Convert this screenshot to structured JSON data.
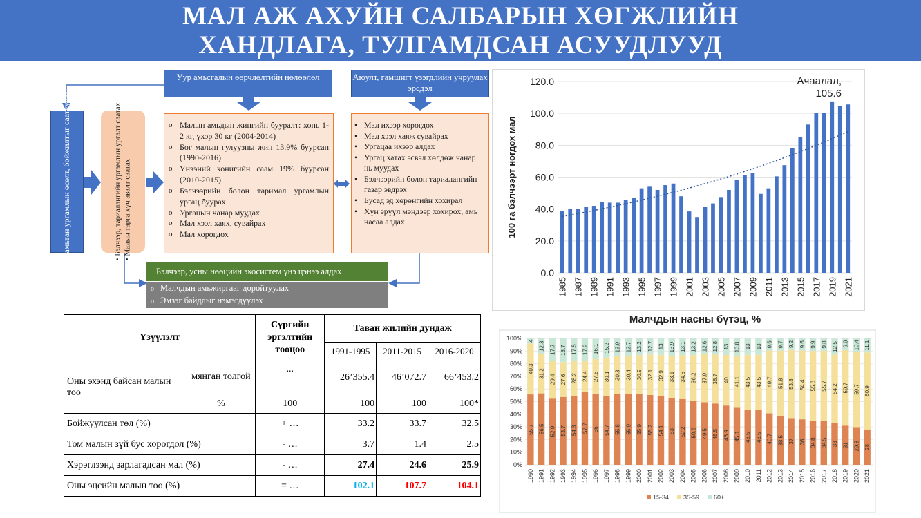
{
  "banner": {
    "line1": "МАЛ АЖ АХУЙН САЛБАРЫН ХӨГЖЛИЙН",
    "line2": "ХАНДЛАГА, ТУЛГАМДСАН АСУУДЛУУД"
  },
  "diagram": {
    "climate_header": "Уур амьсгалын өөрчлөлтийн нөлөөлөл",
    "hazard_header": "Аюулт, гамшигт үзэгдлийн учруулах эрсдэл",
    "left_vertical": "Мал, амьтан ургамлын өсөлт, бойжилтыг саатуулах",
    "mid_vertical": [
      "Бэлчээр, тариалангийн ургамлын ургалт саатах",
      "Малын тарга хүч авалт саатах"
    ],
    "climate_items": [
      "Малын амьдын жингийн бууралт: хонь 1-2 кг, үхэр 30 кг (2004-2014)",
      "Бог малын гулуузны жин 13.9% буурсан (1990-2016)",
      "Үнээний хонигийн саам 19% буурсан (2010-2015)",
      "Бэлчээрийн болон таримал ургамлын ургац буурах",
      "Ургацын чанар муудах",
      "Мал хээл хаях, сувайрах",
      "Мал хорогдох"
    ],
    "hazard_items": [
      "Мал ихээр хорогдох",
      "Мал хээл хаяж сувайрах",
      "Ургацаа ихээр алдах",
      "Ургац хатах эсвэл хөлдөж чанар нь муудах",
      "Бэлчээрийн болон тариалангийн газар эвдрэх",
      "Бусад эд хөрөнгийн хохирал",
      "Хүн эрүүл мэндээр хохирох, амь насаа алдах"
    ],
    "green_bar": "Бэлчээр, усны нөөцийн экосистем үнэ цэнээ алдах",
    "gray_items": [
      "Малчдын амьжиргааг доройтуулах",
      "Эмзэг байдлыг нэмэгдүүлэх"
    ]
  },
  "table": {
    "indicator_header": "Үзүүлэлт",
    "rolling_header": "Сүргийн эргэлтийн тооцоо",
    "avg_header": "Таван жилийн дундаж",
    "periods": [
      "1991-1995",
      "2011-2015",
      "2016-2020"
    ],
    "row_start_label": "Оны эхэнд байсан малын тоо",
    "unit_thousand": "мянган толгой",
    "unit_percent": "%",
    "start_thousand": {
      "roll": "...",
      "v": [
        "26’355.4",
        "46’072.7",
        "66’453.2"
      ]
    },
    "start_percent": {
      "roll": "100",
      "v": [
        "100",
        "100",
        "100*"
      ]
    },
    "rows": [
      {
        "label": "Бойжуулсан төл (%)",
        "roll": "+ …",
        "v": [
          "33.2",
          "33.7",
          "32.5"
        ]
      },
      {
        "label": "Том малын зүй бус хорогдол (%)",
        "roll": "- …",
        "v": [
          "3.7",
          "1.4",
          "2.5"
        ]
      },
      {
        "label": "Хэрэглээнд зарлагадсан мал (%)",
        "roll": "- …",
        "v": [
          "27.4",
          "24.6",
          "25.9"
        ]
      },
      {
        "label": "Оны эцсийн малын тоо  (%)",
        "roll": "= …",
        "v": [
          "102.1",
          "107.7",
          "104.1"
        ]
      }
    ],
    "final_colors": [
      "#00b0f0",
      "#ff0000",
      "#ff0000"
    ]
  },
  "chart_data": [
    {
      "type": "bar",
      "title": "",
      "ylabel": "100 га бэлчээрт ногдох мал",
      "ylim": [
        0,
        120
      ],
      "yticks": [
        "0.0",
        "20.0",
        "40.0",
        "60.0",
        "80.0",
        "100.0",
        "120.0"
      ],
      "x": [
        1985,
        1986,
        1987,
        1988,
        1989,
        1990,
        1991,
        1992,
        1993,
        1994,
        1995,
        1996,
        1997,
        1998,
        1999,
        2000,
        2001,
        2002,
        2003,
        2004,
        2005,
        2006,
        2007,
        2008,
        2009,
        2010,
        2011,
        2012,
        2013,
        2014,
        2015,
        2016,
        2017,
        2018,
        2019,
        2020,
        2021
      ],
      "xticks": [
        "1985",
        "1987",
        "1989",
        "1991",
        "1993",
        "1995",
        "1997",
        "1999",
        "2001",
        "2003",
        "2005",
        "2007",
        "2009",
        "2011",
        "2013",
        "2015",
        "2017",
        "2019",
        "2021"
      ],
      "values": [
        39.0,
        40.0,
        40.0,
        41.5,
        42.0,
        44.5,
        44.0,
        44.0,
        45.5,
        47.0,
        53.0,
        54.0,
        52.0,
        55.0,
        56.0,
        48.0,
        38.5,
        35.0,
        41.5,
        43.5,
        47.5,
        52.0,
        58.5,
        61.5,
        62.5,
        49.5,
        53.0,
        60.5,
        67.5,
        78.0,
        85.0,
        93.0,
        100.5,
        100.5,
        107.5,
        104.5,
        105.6
      ],
      "annotation": "Ачаалал, 105.6",
      "trendline": "dotted",
      "colors": {
        "bar": "#4472c4"
      }
    },
    {
      "type": "bar",
      "title": "Малчдын насны бүтэц, %",
      "stacked": true,
      "categories": [
        "1990",
        "1991",
        "1992",
        "1993",
        "1994",
        "1995",
        "1996",
        "1997",
        "1998",
        "1999",
        "2000",
        "2001",
        "2002",
        "2003",
        "2004",
        "2005",
        "2006",
        "2007",
        "2008",
        "2009",
        "2010",
        "2011",
        "2012",
        "2013",
        "2014",
        "2015",
        "2016",
        "2017",
        "2018",
        "2019",
        "2020",
        "2021"
      ],
      "yticks": [
        "0%",
        "10%",
        "20%",
        "30%",
        "40%",
        "50%",
        "60%",
        "70%",
        "80%",
        "90%",
        "100%"
      ],
      "series": [
        {
          "name": "15-34",
          "color": "#dd8452",
          "values": [
            55.7,
            56.5,
            52.9,
            53.7,
            54.3,
            57.7,
            56.0,
            54.7,
            55.8,
            55.9,
            55.9,
            55.2,
            54.1,
            53.0,
            52.2,
            50.6,
            49.5,
            48.5,
            46.9,
            45.1,
            43.5,
            43.5,
            40.7,
            38.5,
            37.0,
            36.0,
            34.8,
            34.5,
            33.0,
            31.0,
            29.8,
            28.0
          ]
        },
        {
          "name": "35-59",
          "color": "#f5e09b",
          "values": [
            40.3,
            31.2,
            29.4,
            27.6,
            28.2,
            24.4,
            27.6,
            30.1,
            30.3,
            30.4,
            30.9,
            32.1,
            32.9,
            33.1,
            34.6,
            36.2,
            37.9,
            38.7,
            40.0,
            41.1,
            43.5,
            43.5,
            49.7,
            51.8,
            53.8,
            54.4,
            55.3,
            55.7,
            54.2,
            59.7,
            59.7,
            60.9
          ]
        },
        {
          "name": "60+",
          "color": "#c9e7d6",
          "values": [
            4.0,
            12.3,
            17.7,
            18.7,
            17.5,
            17.9,
            16.1,
            15.2,
            13.9,
            13.7,
            13.2,
            12.7,
            13.0,
            13.9,
            13.1,
            13.2,
            12.6,
            12.8,
            13.0,
            13.8,
            13.0,
            13.0,
            9.6,
            9.7,
            9.2,
            9.6,
            9.9,
            9.8,
            12.5,
            9.9,
            10.4,
            11.1
          ]
        }
      ]
    }
  ]
}
